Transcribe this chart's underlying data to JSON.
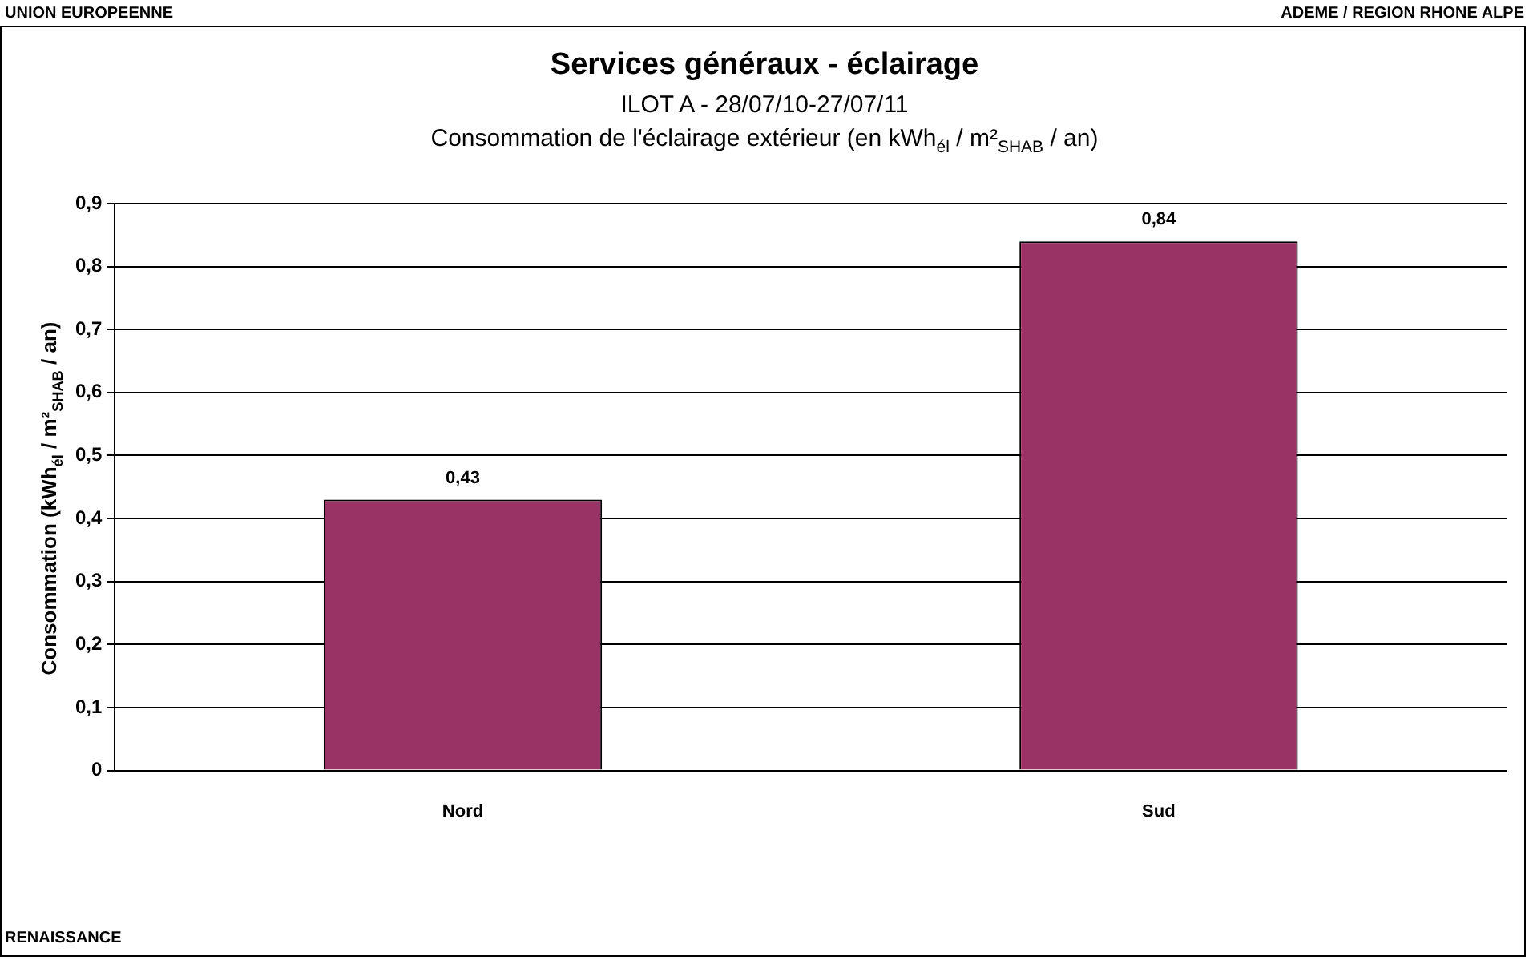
{
  "chart_data": {
    "type": "bar",
    "title": "Services généraux - éclairage",
    "subtitle": "ILOT A -  28/07/10-27/07/11\nConsommation de l'éclairage extérieur (en kWh$_{él}$ / m²$_{SHAB}$ / an)",
    "ylabel": "Consommation (kWh$_{él}$ / m²$_{SHAB}$ / an)",
    "annotations": [
      "UNION EUROPEENNE",
      "ADEME / REGION RHONE ALPE",
      "RENAISSANCE"
    ],
    "categories": [
      "Nord",
      "Sud"
    ],
    "values": [
      0.43,
      0.84
    ],
    "color": "#993366",
    "ylim": [
      0,
      0.9
    ],
    "yticks": [
      {
        "value": 0,
        "label": "0"
      },
      {
        "value": 0.1,
        "label": "0,1"
      },
      {
        "value": 0.2,
        "label": "0,2"
      },
      {
        "value": 0.3,
        "label": "0,3"
      },
      {
        "value": 0.4,
        "label": "0,4"
      },
      {
        "value": 0.5,
        "label": "0,5"
      },
      {
        "value": 0.6,
        "label": "0,6"
      },
      {
        "value": 0.7,
        "label": "0,7"
      },
      {
        "value": 0.8,
        "label": "0,8"
      },
      {
        "value": 0.9,
        "label": "0,9"
      }
    ],
    "value_labels": [
      "0,43",
      "0,84"
    ],
    "grid": "y",
    "legend": false
  }
}
